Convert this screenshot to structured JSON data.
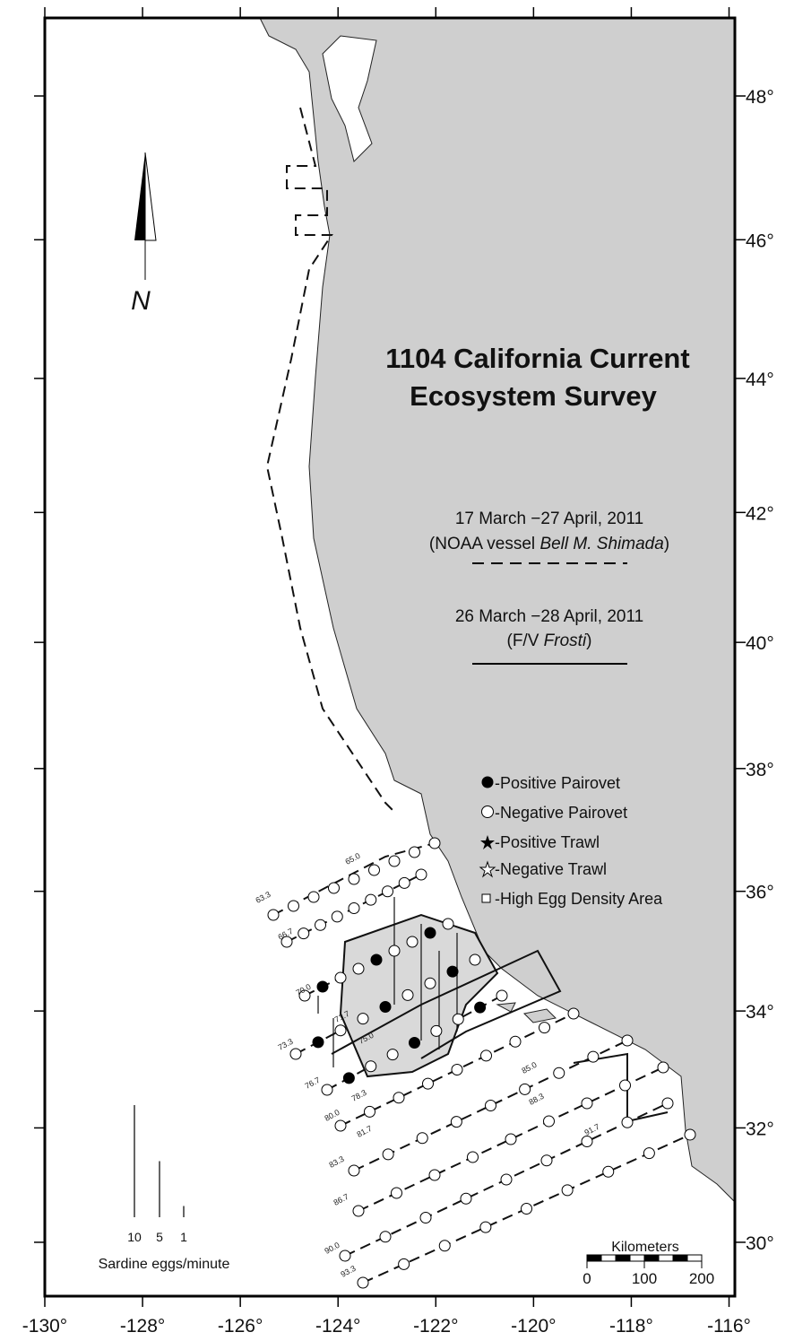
{
  "title": [
    "1104 California Current",
    "Ecosystem Survey"
  ],
  "surveys": [
    {
      "dates": "17 March −27 April, 2011",
      "vessel_prefix": "(NOAA vessel ",
      "vessel": "Bell M. Shimada",
      "vessel_suffix": ")"
    },
    {
      "dates": "26 March −28 April, 2011",
      "vessel_prefix": "(F/V ",
      "vessel": "Frosti",
      "vessel_suffix": ")"
    }
  ],
  "legend": [
    "-Positive Pairovet",
    "-Negative Pairovet",
    "-Positive Trawl",
    "-Negative Trawl",
    "-High Egg Density Area"
  ],
  "north": "N",
  "lon_ticks": [
    {
      "value": -130,
      "label": "-130°"
    },
    {
      "value": -128,
      "label": "-128°"
    },
    {
      "value": -126,
      "label": "-126°"
    },
    {
      "value": -124,
      "label": "-124°"
    },
    {
      "value": -122,
      "label": "-122°"
    },
    {
      "value": -120,
      "label": "-120°"
    },
    {
      "value": -118,
      "label": "-118°"
    },
    {
      "value": -116,
      "label": "-116°"
    }
  ],
  "lat_ticks": [
    {
      "value": 30,
      "label": "30°"
    },
    {
      "value": 32,
      "label": "32°"
    },
    {
      "value": 34,
      "label": "34°"
    },
    {
      "value": 36,
      "label": "36°"
    },
    {
      "value": 38,
      "label": "38°"
    },
    {
      "value": 40,
      "label": "40°"
    },
    {
      "value": 42,
      "label": "42°"
    },
    {
      "value": 44,
      "label": "44°"
    },
    {
      "value": 46,
      "label": "46°"
    },
    {
      "value": 48,
      "label": "48°"
    }
  ],
  "egg_scale": {
    "values": [
      10,
      5,
      1
    ],
    "label": "Sardine eggs/minute"
  },
  "scale_bar": {
    "title": "Kilometers",
    "ticks": [
      0,
      100,
      200
    ]
  },
  "line_labels": [
    "63.3",
    "65.0",
    "66.7",
    "70.0",
    "71.7",
    "73.3",
    "75.0",
    "76.7",
    "78.3",
    "80.0",
    "81.7",
    "83.3",
    "85.0",
    "86.7",
    "88.3",
    "90.0",
    "91.7",
    "93.3"
  ]
}
